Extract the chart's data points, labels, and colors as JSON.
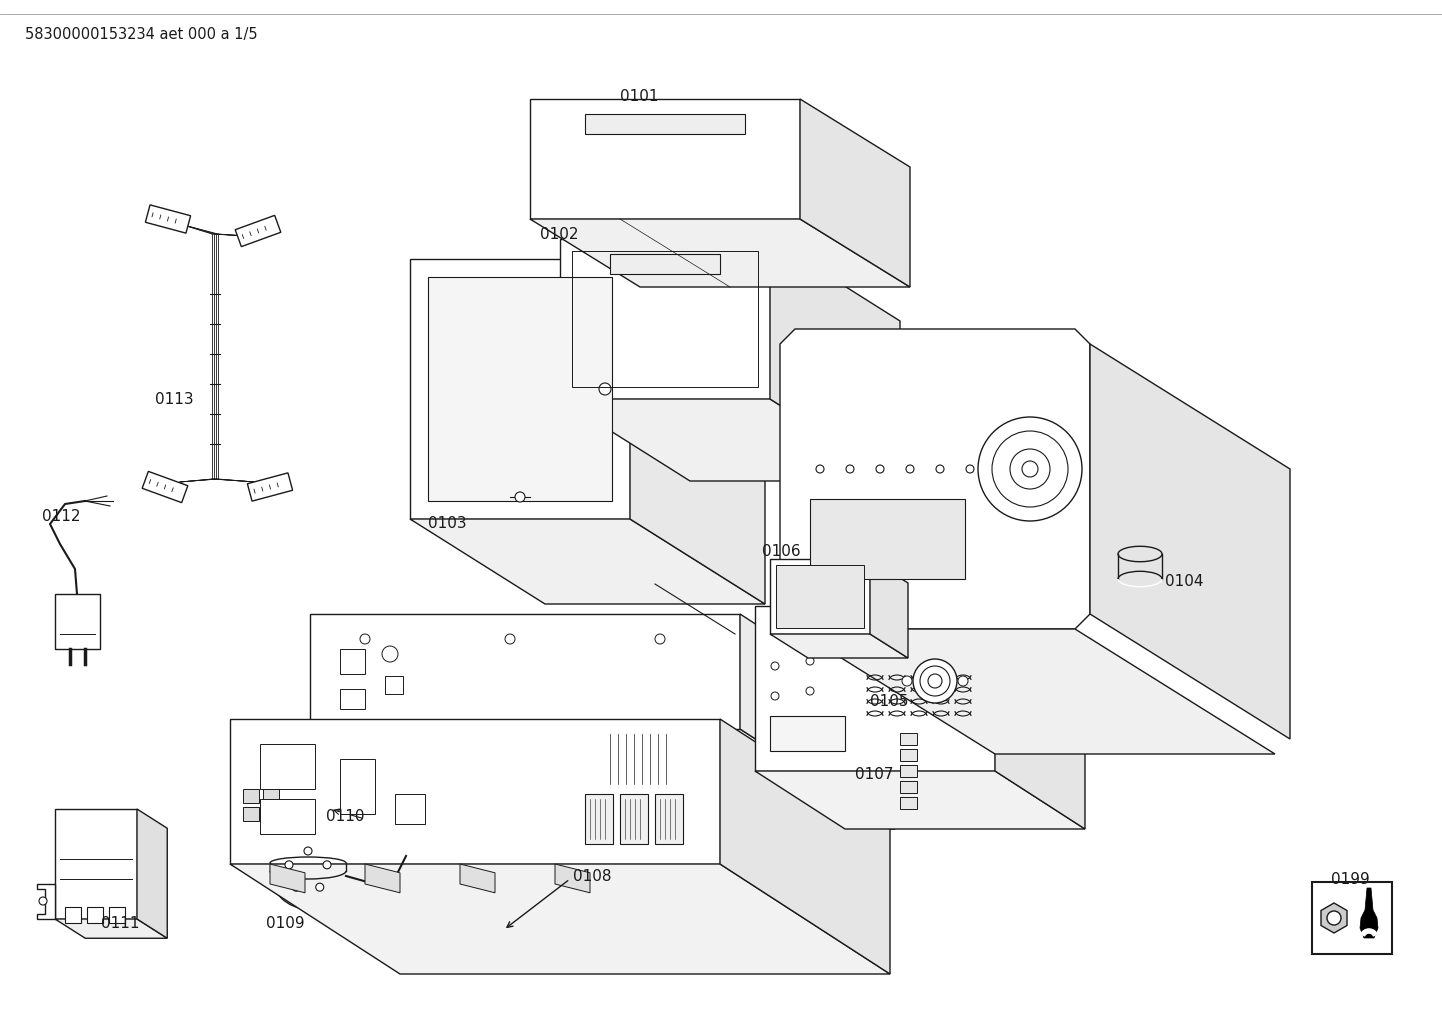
{
  "footer_text": "58300000153234 aet 000 a 1/5",
  "bg_color": "#ffffff",
  "line_color": "#1a1a1a",
  "lw": 1.0
}
